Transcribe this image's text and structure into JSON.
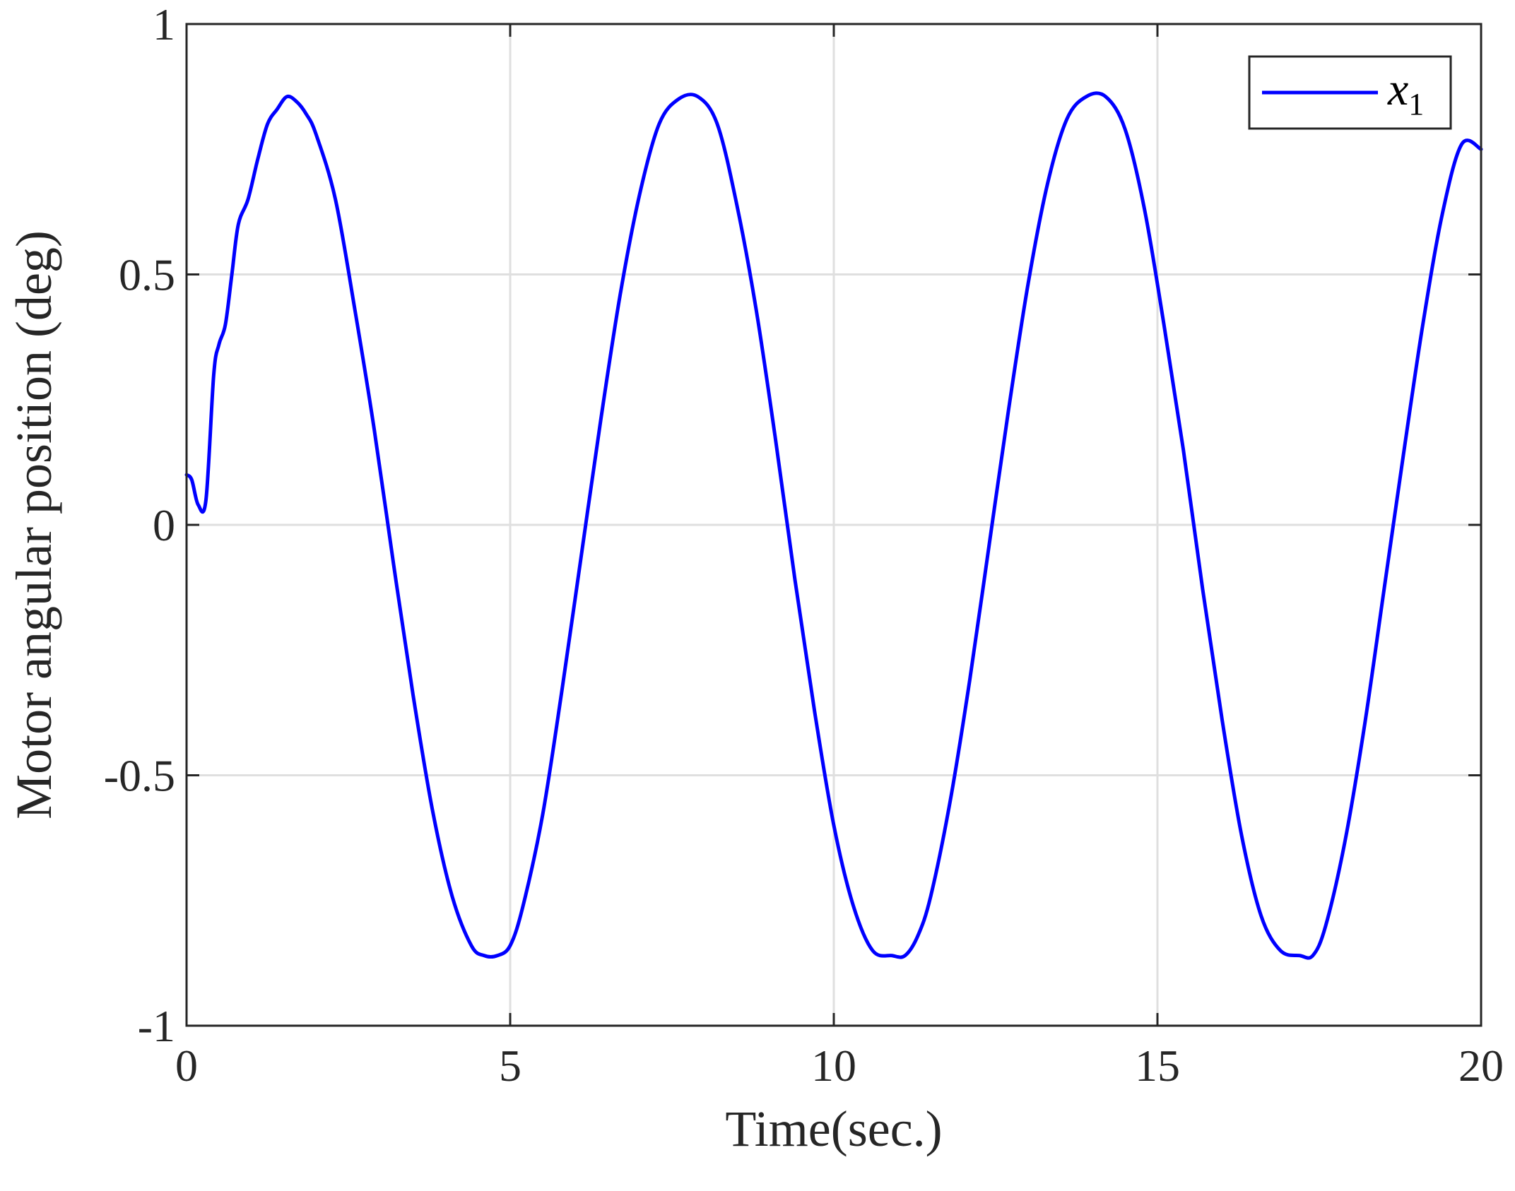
{
  "chart_data": {
    "type": "line",
    "title": "",
    "xlabel": "Time(sec.)",
    "ylabel": "Motor angular position (deg)",
    "xlim": [
      0,
      20
    ],
    "ylim": [
      -1,
      1
    ],
    "xticks": [
      0,
      5,
      10,
      15,
      20
    ],
    "yticks": [
      -1,
      -0.5,
      0,
      0.5,
      1
    ],
    "xtick_labels": [
      "0",
      "5",
      "10",
      "15",
      "20"
    ],
    "ytick_labels": [
      "-1",
      "-0.5",
      "0",
      "0.5",
      "1"
    ],
    "grid": true,
    "legend_position": "top-right",
    "series": [
      {
        "name": "x1",
        "legend_main": "x",
        "legend_sub": "1",
        "color": "#0000ff",
        "x": [
          0,
          0.08,
          0.18,
          0.3,
          0.42,
          0.5,
          0.6,
          0.7,
          0.8,
          0.95,
          1.1,
          1.25,
          1.4,
          1.55,
          1.7,
          1.85,
          2.0,
          2.3,
          2.6,
          2.9,
          3.2,
          3.5,
          3.8,
          4.1,
          4.4,
          4.6,
          4.8,
          5.0,
          5.2,
          5.5,
          5.8,
          6.1,
          6.4,
          6.7,
          7.0,
          7.3,
          7.6,
          7.9,
          8.2,
          8.5,
          8.8,
          9.1,
          9.4,
          9.7,
          10.0,
          10.3,
          10.6,
          10.9,
          11.1,
          11.3,
          11.5,
          11.8,
          12.1,
          12.4,
          12.7,
          13.0,
          13.3,
          13.6,
          13.9,
          14.2,
          14.5,
          14.8,
          15.1,
          15.4,
          15.7,
          16.0,
          16.3,
          16.6,
          16.9,
          17.2,
          17.4,
          17.6,
          17.9,
          18.2,
          18.5,
          18.8,
          19.1,
          19.4,
          19.7,
          20.0
        ],
        "y": [
          0.1,
          0.09,
          0.04,
          0.05,
          0.3,
          0.36,
          0.4,
          0.5,
          0.6,
          0.65,
          0.73,
          0.8,
          0.83,
          0.855,
          0.845,
          0.82,
          0.78,
          0.65,
          0.43,
          0.19,
          -0.08,
          -0.34,
          -0.57,
          -0.74,
          -0.84,
          -0.86,
          -0.86,
          -0.84,
          -0.76,
          -0.58,
          -0.33,
          -0.06,
          0.21,
          0.46,
          0.66,
          0.8,
          0.85,
          0.855,
          0.8,
          0.64,
          0.43,
          0.17,
          -0.11,
          -0.37,
          -0.6,
          -0.76,
          -0.85,
          -0.86,
          -0.86,
          -0.82,
          -0.74,
          -0.55,
          -0.31,
          -0.04,
          0.23,
          0.48,
          0.68,
          0.81,
          0.855,
          0.855,
          0.79,
          0.63,
          0.4,
          0.15,
          -0.13,
          -0.39,
          -0.62,
          -0.78,
          -0.85,
          -0.86,
          -0.86,
          -0.8,
          -0.63,
          -0.4,
          -0.13,
          0.14,
          0.4,
          0.62,
          0.76,
          0.75
        ]
      }
    ]
  }
}
